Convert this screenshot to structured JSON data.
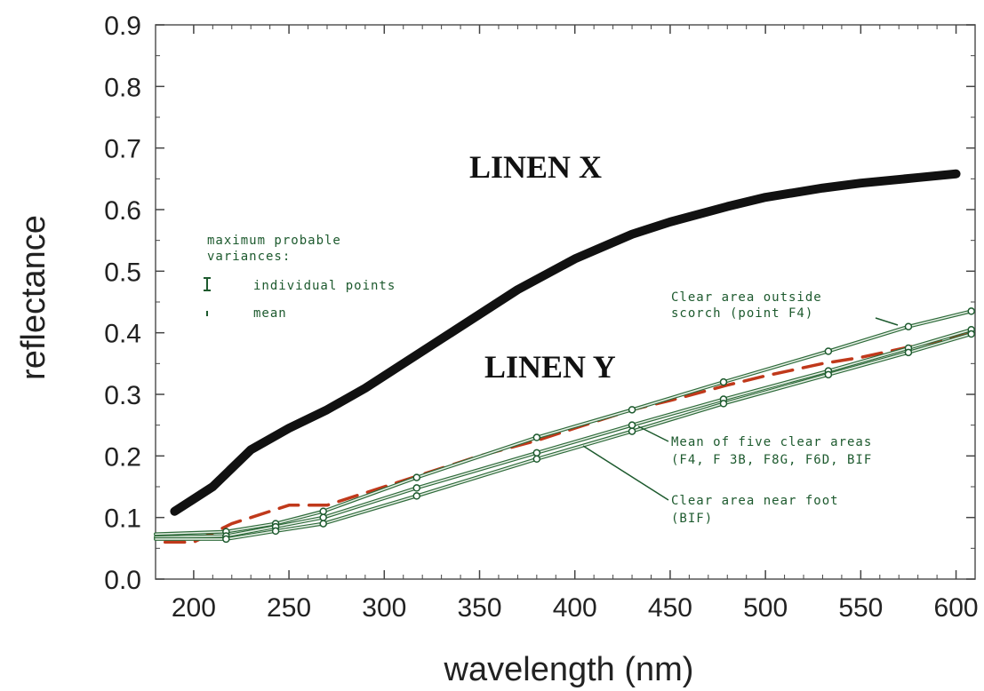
{
  "chart_data": {
    "type": "line",
    "xlabel": "wavelength (nm)",
    "ylabel": "reflectance",
    "xlim": [
      180,
      610
    ],
    "ylim": [
      0.0,
      0.9
    ],
    "x_ticks": [
      "200",
      "250",
      "300",
      "350",
      "400",
      "450",
      "500",
      "550",
      "600"
    ],
    "y_ticks": [
      "0.0",
      "0.1",
      "0.2",
      "0.3",
      "0.4",
      "0.5",
      "0.6",
      "0.7",
      "0.8",
      "0.9"
    ],
    "grid": false,
    "series": [
      {
        "name": "LINEN X",
        "color": "#111111",
        "x": [
          190,
          200,
          210,
          230,
          250,
          270,
          290,
          310,
          330,
          350,
          370,
          400,
          430,
          450,
          480,
          500,
          530,
          550,
          580,
          600
        ],
        "y": [
          0.11,
          0.13,
          0.15,
          0.21,
          0.245,
          0.275,
          0.31,
          0.35,
          0.39,
          0.43,
          0.47,
          0.52,
          0.56,
          0.58,
          0.605,
          0.62,
          0.635,
          0.643,
          0.652,
          0.658
        ]
      },
      {
        "name": "",
        "color": "#c0391b",
        "style": "dashed",
        "x": [
          185,
          200,
          220,
          250,
          270,
          300,
          330,
          350,
          380,
          400,
          430,
          450,
          480,
          500,
          530,
          550,
          580,
          610
        ],
        "y": [
          0.06,
          0.06,
          0.09,
          0.12,
          0.12,
          0.15,
          0.18,
          0.2,
          0.225,
          0.245,
          0.275,
          0.29,
          0.315,
          0.33,
          0.35,
          0.36,
          0.38,
          0.4
        ]
      },
      {
        "name": "Clear area outside scorch (point F4)",
        "color": "#1d5a2e",
        "x": [
          180,
          217,
          243,
          268,
          317,
          380,
          430,
          478,
          533,
          575,
          608
        ],
        "y": [
          0.073,
          0.077,
          0.09,
          0.11,
          0.165,
          0.23,
          0.275,
          0.32,
          0.37,
          0.41,
          0.435
        ]
      },
      {
        "name": "Mean of five clear areas (F4, F3B, F8G, F6D, BIF)",
        "color": "#1d5a2e",
        "x": [
          180,
          217,
          243,
          268,
          317,
          380,
          430,
          478,
          533,
          575,
          608
        ],
        "y": [
          0.068,
          0.07,
          0.085,
          0.1,
          0.148,
          0.205,
          0.25,
          0.292,
          0.338,
          0.375,
          0.405
        ]
      },
      {
        "name": "Clear area near foot (BIF)",
        "color": "#1d5a2e",
        "x": [
          180,
          217,
          243,
          268,
          317,
          380,
          430,
          478,
          533,
          575,
          608
        ],
        "y": [
          0.065,
          0.065,
          0.078,
          0.09,
          0.135,
          0.195,
          0.24,
          0.285,
          0.332,
          0.368,
          0.398
        ]
      }
    ],
    "annotations": {
      "linen_x": "LINEN X",
      "linen_y": "LINEN Y",
      "variance_title_1": "maximum probable",
      "variance_title_2": "variances:",
      "variance_item_1": "individual points",
      "variance_item_2": "mean",
      "label_f4_1": "Clear area outside",
      "label_f4_2": "scorch (point F4)",
      "label_mean_1": "Mean of five clear areas",
      "label_mean_2": "(F4, F 3B, F8G, F6D, BIF",
      "label_bif_1": "Clear area near foot",
      "label_bif_2": "(BIF)"
    }
  }
}
